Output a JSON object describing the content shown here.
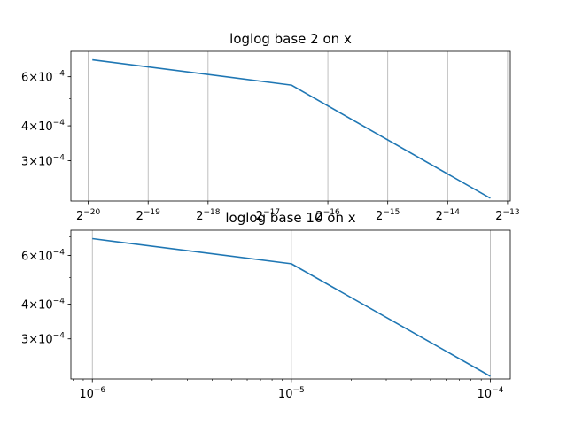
{
  "chart_data": [
    {
      "type": "line",
      "title": "loglog base 2 on x",
      "xscale": "log2",
      "yscale": "log10",
      "xlim": [
        7.8e-07,
        0.000126
      ],
      "ylim": [
        0.000215,
        0.00074
      ],
      "grid": "x-major",
      "x_ticks": [
        {
          "value": 9.5367431640625e-07,
          "base": "2",
          "exp": "−20"
        },
        {
          "value": 1.9073486328125e-06,
          "base": "2",
          "exp": "−19"
        },
        {
          "value": 3.814697265625e-06,
          "base": "2",
          "exp": "−18"
        },
        {
          "value": 7.62939453125e-06,
          "base": "2",
          "exp": "−17"
        },
        {
          "value": 1.52587890625e-05,
          "base": "2",
          "exp": "−16"
        },
        {
          "value": 3.0517578125e-05,
          "base": "2",
          "exp": "−15"
        },
        {
          "value": 6.103515625e-05,
          "base": "2",
          "exp": "−14"
        },
        {
          "value": 0.0001220703125,
          "base": "2",
          "exp": "−13"
        }
      ],
      "y_ticks": [
        {
          "value": 0.0006,
          "mant": "6×10",
          "exp": "−4"
        },
        {
          "value": 0.0004,
          "mant": "4×10",
          "exp": "−4"
        },
        {
          "value": 0.0003,
          "mant": "3×10",
          "exp": "−4"
        }
      ],
      "series": [
        {
          "color": "#1f77b4",
          "x": [
            1e-06,
            1e-05,
            0.0001
          ],
          "y": [
            0.00069,
            0.00056,
            0.00022
          ]
        }
      ]
    },
    {
      "type": "line",
      "title": "loglog base 10 on x",
      "xscale": "log10",
      "yscale": "log10",
      "xlim": [
        7.8e-07,
        0.000126
      ],
      "ylim": [
        0.000215,
        0.00074
      ],
      "grid": "x-major",
      "x_ticks": [
        {
          "value": 1e-06,
          "base": "10",
          "exp": "−6"
        },
        {
          "value": 1e-05,
          "base": "10",
          "exp": "−5"
        },
        {
          "value": 0.0001,
          "base": "10",
          "exp": "−4"
        }
      ],
      "x_minor_ticks": [
        8e-07,
        9e-07,
        2e-06,
        3e-06,
        4e-06,
        5e-06,
        6e-06,
        7e-06,
        8e-06,
        9e-06,
        2e-05,
        3e-05,
        4e-05,
        5e-05,
        6e-05,
        7e-05,
        8e-05,
        9e-05
      ],
      "y_ticks": [
        {
          "value": 0.0006,
          "mant": "6×10",
          "exp": "−4"
        },
        {
          "value": 0.0004,
          "mant": "4×10",
          "exp": "−4"
        },
        {
          "value": 0.0003,
          "mant": "3×10",
          "exp": "−4"
        }
      ],
      "series": [
        {
          "color": "#1f77b4",
          "x": [
            1e-06,
            1e-05,
            0.0001
          ],
          "y": [
            0.00069,
            0.00056,
            0.00022
          ]
        }
      ]
    }
  ]
}
